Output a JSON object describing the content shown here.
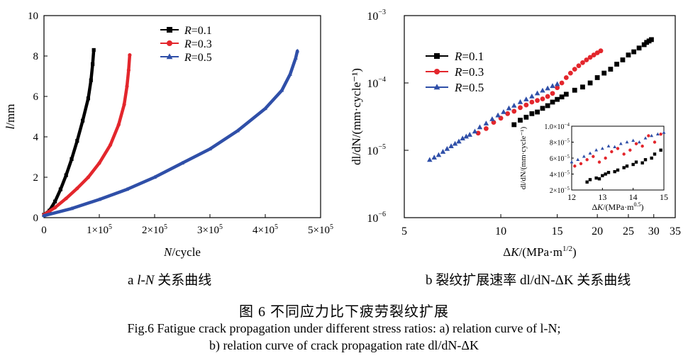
{
  "colors": {
    "R01": "#000000",
    "R03": "#e3262c",
    "R05": "#2f4fa8"
  },
  "chart_data": [
    {
      "type": "line",
      "title": "",
      "xlabel_italic": "N",
      "xlabel_rest": "/cycle",
      "ylabel_italic": "l",
      "ylabel_rest": "/mm",
      "xlim": [
        0,
        500000
      ],
      "ylim": [
        0,
        10
      ],
      "xticks": [
        0,
        100000,
        200000,
        300000,
        400000,
        500000
      ],
      "xtick_labels": [
        {
          "mant": "0",
          "exp": ""
        },
        {
          "mant": "1×10",
          "exp": "5"
        },
        {
          "mant": "2×10",
          "exp": "5"
        },
        {
          "mant": "3×10",
          "exp": "5"
        },
        {
          "mant": "4×10",
          "exp": "5"
        },
        {
          "mant": "5×10",
          "exp": "5"
        }
      ],
      "yticks": [
        0,
        2,
        4,
        6,
        8,
        10
      ],
      "ytick_labels": [
        "0",
        "2",
        "4",
        "6",
        "8",
        "10"
      ],
      "legend_position": "top-center",
      "series": [
        {
          "key": "R01",
          "label_italic": "R",
          "label_rest": "=0.1",
          "marker": "square",
          "x": [
            0,
            10000,
            20000,
            30000,
            40000,
            50000,
            60000,
            70000,
            80000,
            85000,
            88000,
            90000
          ],
          "y": [
            0.15,
            0.35,
            0.8,
            1.4,
            2.1,
            2.9,
            3.8,
            4.8,
            5.9,
            6.8,
            7.6,
            8.3
          ]
        },
        {
          "key": "R03",
          "label_italic": "R",
          "label_rest": "=0.3",
          "marker": "circle",
          "x": [
            0,
            20000,
            40000,
            60000,
            80000,
            100000,
            120000,
            135000,
            145000,
            150000,
            153000,
            155000
          ],
          "y": [
            0.15,
            0.5,
            0.95,
            1.45,
            2.0,
            2.7,
            3.6,
            4.6,
            5.6,
            6.5,
            7.3,
            8.05
          ]
        },
        {
          "key": "R05",
          "label_italic": "R",
          "label_rest": "=0.5",
          "marker": "triangle",
          "x": [
            0,
            50000,
            100000,
            150000,
            200000,
            250000,
            300000,
            350000,
            400000,
            430000,
            445000,
            455000,
            458000
          ],
          "y": [
            0.1,
            0.45,
            0.9,
            1.4,
            2.0,
            2.7,
            3.4,
            4.3,
            5.4,
            6.3,
            7.1,
            7.9,
            8.25
          ]
        }
      ]
    },
    {
      "type": "scatter",
      "xscale": "log",
      "yscale": "log",
      "xlabel_pre": "Δ",
      "xlabel_italic": "K",
      "xlabel_rest": "/(MPa·m",
      "xlabel_sup": "1/2",
      "xlabel_post": ")",
      "ylabel_text": "dl/dN/(mm·cycle⁻¹)",
      "xlim": [
        5,
        35
      ],
      "ylim": [
        1e-06,
        0.001
      ],
      "xticks": [
        5,
        10,
        15,
        20,
        25,
        30,
        35
      ],
      "xtick_labels": [
        "5",
        "10",
        "15",
        "20",
        "25",
        "30",
        "35"
      ],
      "yticks": [
        1e-06,
        1e-05,
        0.0001,
        0.001
      ],
      "ytick_labels": [
        {
          "base": "10",
          "exp": "−6"
        },
        {
          "base": "10",
          "exp": "−5"
        },
        {
          "base": "10",
          "exp": "−4"
        },
        {
          "base": "10",
          "exp": "−3"
        }
      ],
      "legend_position": "top-left",
      "series": [
        {
          "key": "R01",
          "label_italic": "R",
          "label_rest": "=0.1",
          "marker": "square",
          "x": [
            11.0,
            11.5,
            12.0,
            12.5,
            13.0,
            13.5,
            14.0,
            14.5,
            15.0,
            15.5,
            16.0,
            17.0,
            18.0,
            19.0,
            20.0,
            21.0,
            22.0,
            23.0,
            24.0,
            25.0,
            26.0,
            27.0,
            28.0,
            28.5,
            29.0,
            29.5
          ],
          "y": [
            2.4e-05,
            2.8e-05,
            3.1e-05,
            3.5e-05,
            3.7e-05,
            4.2e-05,
            4.6e-05,
            5.2e-05,
            5.7e-05,
            6.2e-05,
            6.8e-05,
            7.8e-05,
            8.7e-05,
            0.0001,
            0.00012,
            0.00014,
            0.00016,
            0.00019,
            0.00022,
            0.00026,
            0.00029,
            0.00033,
            0.00037,
            0.0004,
            0.00042,
            0.00044
          ]
        },
        {
          "key": "R03",
          "label_italic": "R",
          "label_rest": "=0.3",
          "marker": "circle",
          "x": [
            8.5,
            9.0,
            9.5,
            10.0,
            10.5,
            11.0,
            11.5,
            12.0,
            12.5,
            13.0,
            13.5,
            14.0,
            14.5,
            15.0,
            15.5,
            16.0,
            16.5,
            17.0,
            17.5,
            18.0,
            18.5,
            19.0,
            19.5,
            20.0,
            20.5
          ],
          "y": [
            1.8e-05,
            2.1e-05,
            2.6e-05,
            3e-05,
            3.5e-05,
            3.8e-05,
            4.3e-05,
            4.7e-05,
            5.2e-05,
            5.5e-05,
            5.8e-05,
            6.3e-05,
            7e-05,
            8.5e-05,
            0.0001,
            0.00012,
            0.00014,
            0.00016,
            0.00018,
            0.0002,
            0.00022,
            0.00024,
            0.00026,
            0.00028,
            0.0003
          ]
        },
        {
          "key": "R05",
          "label_italic": "R",
          "label_rest": "=0.5",
          "marker": "triangle",
          "x": [
            6.0,
            6.2,
            6.4,
            6.6,
            6.8,
            7.0,
            7.2,
            7.4,
            7.6,
            7.8,
            8.0,
            8.3,
            8.6,
            9.0,
            9.4,
            9.8,
            10.2,
            10.6,
            11.0,
            11.5,
            12.0,
            12.5,
            13.0,
            13.5,
            14.0,
            14.5,
            15.0
          ],
          "y": [
            7.2e-06,
            7.8e-06,
            8.5e-06,
            9.5e-06,
            1.05e-05,
            1.15e-05,
            1.25e-05,
            1.35e-05,
            1.5e-05,
            1.6e-05,
            1.7e-05,
            1.9e-05,
            2.2e-05,
            2.5e-05,
            2.9e-05,
            3.3e-05,
            3.7e-05,
            4.2e-05,
            4.6e-05,
            5.2e-05,
            5.7e-05,
            6.3e-05,
            7e-05,
            7.7e-05,
            8.3e-05,
            9e-05,
            9.6e-05
          ]
        }
      ]
    },
    {
      "type": "scatter",
      "role": "inset",
      "xlabel_pre": "Δ",
      "xlabel_italic": "K",
      "xlabel_rest": "/(MPa·m",
      "xlabel_sup": "0.5",
      "xlabel_post": ")",
      "ylabel_text": "dl/dN/(mm·cycle⁻¹)",
      "xlim": [
        12,
        15
      ],
      "ylim": [
        2e-05,
        0.0001
      ],
      "xticks": [
        12,
        13,
        14,
        15
      ],
      "xtick_labels": [
        "12",
        "13",
        "14",
        "15"
      ],
      "yticks": [
        2e-05,
        4e-05,
        6e-05,
        8e-05,
        0.0001
      ],
      "ytick_labels": [
        {
          "mant": "2×10",
          "exp": "−5"
        },
        {
          "mant": "4×10",
          "exp": "−5"
        },
        {
          "mant": "6×10",
          "exp": "−5"
        },
        {
          "mant": "8×10",
          "exp": "−5"
        },
        {
          "mant": "1.0×10",
          "exp": "−4"
        }
      ],
      "series": [
        {
          "key": "R01",
          "marker": "square",
          "x": [
            12.5,
            12.6,
            12.8,
            12.9,
            13.0,
            13.1,
            13.2,
            13.4,
            13.5,
            13.7,
            13.8,
            14.0,
            14.1,
            14.3,
            14.4,
            14.6,
            14.7,
            14.9
          ],
          "y": [
            3e-05,
            3.3e-05,
            3.5e-05,
            3.4e-05,
            3.8e-05,
            4e-05,
            4.2e-05,
            4.3e-05,
            4.5e-05,
            4.8e-05,
            5e-05,
            5.2e-05,
            5.5e-05,
            5.4e-05,
            5.8e-05,
            6e-05,
            6.5e-05,
            7e-05
          ]
        },
        {
          "key": "R03",
          "marker": "circle",
          "x": [
            12.1,
            12.3,
            12.5,
            12.7,
            12.9,
            13.1,
            13.3,
            13.5,
            13.7,
            13.9,
            14.1,
            14.3,
            14.5,
            14.7,
            14.9
          ],
          "y": [
            5e-05,
            5.3e-05,
            5.8e-05,
            6.2e-05,
            5.5e-05,
            6e-05,
            6.8e-05,
            7.2e-05,
            6.5e-05,
            7e-05,
            7.8e-05,
            7.5e-05,
            8.8e-05,
            8e-05,
            9e-05
          ]
        },
        {
          "key": "R05",
          "marker": "triangle",
          "x": [
            12.0,
            12.2,
            12.4,
            12.6,
            12.8,
            13.0,
            13.2,
            13.4,
            13.6,
            13.8,
            14.0,
            14.2,
            14.4,
            14.6,
            14.8,
            15.0
          ],
          "y": [
            5.5e-05,
            5.8e-05,
            6.2e-05,
            6.6e-05,
            7e-05,
            7.2e-05,
            7.5e-05,
            7.4e-05,
            7.8e-05,
            8e-05,
            8.2e-05,
            8e-05,
            8.5e-05,
            8.8e-05,
            9e-05,
            9.2e-05
          ]
        }
      ]
    }
  ],
  "captions": {
    "sub_a_pre": "a ",
    "sub_a_italic": "l-N",
    "sub_a_post": " 关系曲线",
    "sub_b_text": "b 裂纹扩展速率 dl/dN-ΔK 关系曲线",
    "figure_cn": "图 6    不同应力比下疲劳裂纹扩展",
    "figure_en_line1": "Fig.6 Fatigue crack propagation under different stress ratios: a) relation curve of l-N;",
    "figure_en_line2": "b) relation curve of crack propagation rate dl/dN-ΔK"
  }
}
